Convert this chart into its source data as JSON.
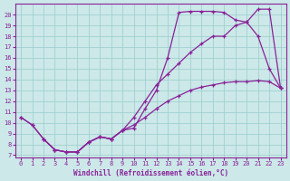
{
  "xlabel": "Windchill (Refroidissement éolien,°C)",
  "xlim_min": -0.5,
  "xlim_max": 23.5,
  "ylim_min": 6.8,
  "ylim_max": 21.0,
  "xticks": [
    0,
    1,
    2,
    3,
    4,
    5,
    6,
    7,
    8,
    9,
    10,
    11,
    12,
    13,
    14,
    15,
    16,
    17,
    18,
    19,
    20,
    21,
    22,
    23
  ],
  "yticks": [
    7,
    8,
    9,
    10,
    11,
    12,
    13,
    14,
    15,
    16,
    17,
    18,
    19,
    20
  ],
  "bg_color": "#cce8e8",
  "grid_color": "#99cccc",
  "line_color": "#882299",
  "curve1_x": [
    0,
    1,
    2,
    3,
    4,
    5,
    6,
    7,
    8,
    9,
    10,
    11,
    12,
    13,
    14,
    15,
    16,
    17,
    18,
    19,
    20,
    21,
    22,
    23
  ],
  "curve1_y": [
    10.5,
    9.8,
    8.5,
    7.5,
    7.3,
    7.3,
    8.2,
    8.7,
    8.5,
    9.3,
    9.5,
    11.3,
    13.0,
    16.0,
    20.2,
    20.3,
    20.3,
    20.3,
    20.2,
    19.5,
    19.3,
    18.0,
    15.0,
    13.2
  ],
  "curve2_x": [
    2,
    3,
    4,
    5,
    6,
    7,
    8,
    9,
    10,
    11,
    12,
    13,
    14,
    15,
    16,
    17,
    18,
    19,
    20,
    21,
    22,
    23
  ],
  "curve2_y": [
    8.5,
    7.5,
    7.3,
    7.3,
    8.2,
    8.7,
    8.5,
    9.3,
    10.5,
    12.0,
    13.5,
    14.5,
    15.5,
    16.5,
    17.3,
    18.0,
    18.0,
    19.0,
    19.3,
    20.5,
    20.5,
    13.2
  ],
  "curve3_x": [
    0,
    1,
    2,
    3,
    4,
    5,
    6,
    7,
    8,
    9,
    10,
    11,
    12,
    13,
    14,
    15,
    16,
    17,
    18,
    19,
    20,
    21,
    22,
    23
  ],
  "curve3_y": [
    10.5,
    9.8,
    8.5,
    7.5,
    7.3,
    7.3,
    8.2,
    8.7,
    8.5,
    9.3,
    9.8,
    10.5,
    11.3,
    12.0,
    12.5,
    13.0,
    13.3,
    13.5,
    13.7,
    13.8,
    13.8,
    13.9,
    13.8,
    13.2
  ]
}
